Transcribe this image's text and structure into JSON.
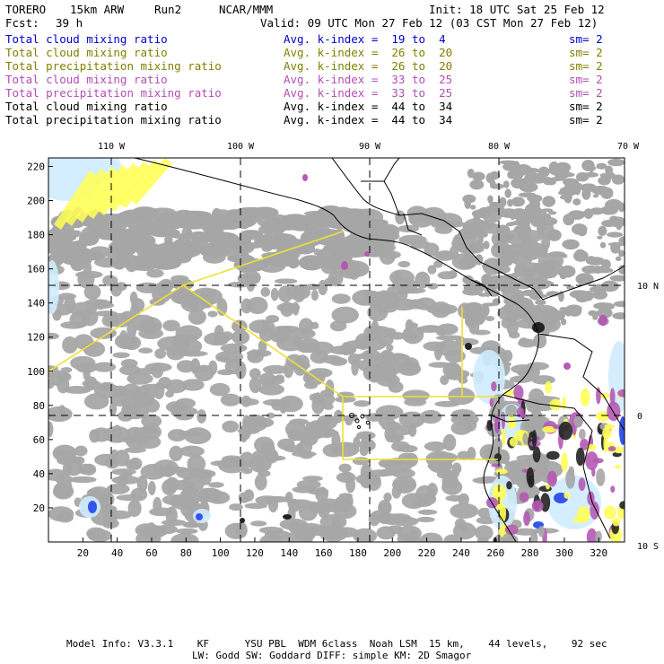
{
  "header": {
    "model": "TORERO",
    "resolution": "15km ARW",
    "run": "Run2",
    "org": "NCAR/MMM",
    "init": "Init: 18 UTC Sat 25 Feb 12",
    "fcst_label": "Fcst:",
    "fcst_value": "39 h",
    "valid": "Valid: 09 UTC Mon 27 Feb 12 (03 CST Mon 27 Feb 12)"
  },
  "legend": [
    {
      "field": "Total cloud mixing ratio",
      "kindex": "Avg. k-index =  19 to  4",
      "sm": "sm= 2",
      "color": "#0000cc"
    },
    {
      "field": "Total cloud mixing ratio",
      "kindex": "Avg. k-index =  26 to  20",
      "sm": "sm= 2",
      "color": "#808000"
    },
    {
      "field": "Total precipitation mixing ratio",
      "kindex": "Avg. k-index =  26 to  20",
      "sm": "sm= 2",
      "color": "#808000"
    },
    {
      "field": "Total cloud mixing ratio",
      "kindex": "Avg. k-index =  33 to  25",
      "sm": "sm= 2",
      "color": "#b34db3"
    },
    {
      "field": "Total precipitation mixing ratio",
      "kindex": "Avg. k-index =  33 to  25",
      "sm": "sm= 2",
      "color": "#b34db3"
    },
    {
      "field": "Total cloud mixing ratio",
      "kindex": "Avg. k-index =  44 to  34",
      "sm": "sm= 2",
      "color": "#000000"
    },
    {
      "field": "Total precipitation mixing ratio",
      "kindex": "Avg. k-index =  44 to  34",
      "sm": "sm= 2",
      "color": "#000000"
    }
  ],
  "map": {
    "lon_labels": [
      "110 W",
      "100 W",
      "90 W",
      "80 W",
      "70 W"
    ],
    "lat_labels": [
      "10 N",
      "0",
      "10 S"
    ],
    "x_ticks": [
      "20",
      "40",
      "60",
      "80",
      "100",
      "120",
      "140",
      "160",
      "180",
      "200",
      "220",
      "240",
      "260",
      "280",
      "300",
      "320"
    ],
    "y_ticks": [
      "20",
      "40",
      "60",
      "80",
      "100",
      "120",
      "140",
      "160",
      "180",
      "200",
      "220"
    ],
    "colors": {
      "gray_cloud": "#a6a6a6",
      "light_blue": "#d0ecff",
      "blue": "#3355ee",
      "yellow": "#ffff55",
      "magenta": "#b45ab4",
      "dark": "#222222",
      "domain_line": "#f0e030"
    }
  },
  "footer": {
    "line1": "Model Info: V3.3.1    KF      YSU PBL  WDM 6class  Noah LSM  15 km,    44 levels,    92 sec",
    "line2": "LW: Godd SW: Goddard DIFF: simple KM: 2D Smagor"
  }
}
